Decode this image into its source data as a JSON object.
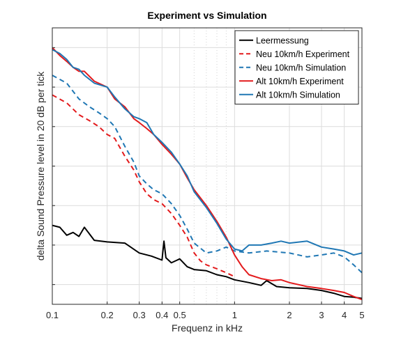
{
  "chart_data": {
    "type": "line",
    "title": "Experiment vs Simulation",
    "xlabel": "Frequenz in kHz",
    "ylabel": "delta Sound Pressure level in 20 dB per tick",
    "xscale": "log",
    "xlim": [
      0.1,
      5
    ],
    "ylim": [
      0,
      7
    ],
    "x_tick_labels": [
      {
        "value": 0.1,
        "label": "0.1"
      },
      {
        "value": 0.2,
        "label": "0.2"
      },
      {
        "value": 0.3,
        "label": "0.3"
      },
      {
        "value": 0.4,
        "label": "0.4"
      },
      {
        "value": 0.5,
        "label": "0.5"
      },
      {
        "value": 1,
        "label": "1"
      },
      {
        "value": 2,
        "label": "2"
      },
      {
        "value": 3,
        "label": "3"
      },
      {
        "value": 4,
        "label": "4"
      },
      {
        "value": 5,
        "label": "5"
      }
    ],
    "y_ticks": [
      0.5,
      1.5,
      2.5,
      3.5,
      4.5,
      5.5,
      6.5
    ],
    "grid": true,
    "legend_position": "top-right",
    "series": [
      {
        "name": "Leermessung",
        "color": "#000000",
        "dash": "solid",
        "x": [
          0.1,
          0.11,
          0.12,
          0.13,
          0.14,
          0.15,
          0.17,
          0.2,
          0.25,
          0.3,
          0.35,
          0.4,
          0.41,
          0.42,
          0.45,
          0.5,
          0.55,
          0.6,
          0.7,
          0.8,
          0.9,
          1.0,
          1.2,
          1.4,
          1.5,
          1.7,
          2.0,
          2.5,
          3.0,
          3.5,
          4.0,
          4.5,
          5.0
        ],
        "y": [
          2.0,
          1.95,
          1.75,
          1.82,
          1.72,
          1.95,
          1.62,
          1.58,
          1.55,
          1.3,
          1.22,
          1.12,
          1.6,
          1.18,
          1.05,
          1.15,
          0.95,
          0.88,
          0.85,
          0.75,
          0.7,
          0.62,
          0.55,
          0.48,
          0.6,
          0.45,
          0.42,
          0.4,
          0.35,
          0.28,
          0.2,
          0.18,
          0.15
        ]
      },
      {
        "name": "Neu 10km/h Experiment",
        "color": "#e31a1c",
        "dash": "dashed",
        "x": [
          0.1,
          0.12,
          0.14,
          0.16,
          0.18,
          0.2,
          0.22,
          0.25,
          0.28,
          0.3,
          0.33,
          0.36,
          0.4,
          0.45,
          0.5,
          0.55,
          0.6,
          0.65,
          0.7,
          0.8,
          0.9,
          1.0
        ],
        "y": [
          5.3,
          5.1,
          4.8,
          4.65,
          4.5,
          4.3,
          4.2,
          3.75,
          3.4,
          3.1,
          2.8,
          2.65,
          2.55,
          2.3,
          2.0,
          1.7,
          1.3,
          1.1,
          1.0,
          0.9,
          0.8,
          0.7
        ]
      },
      {
        "name": "Neu 10km/h Simulation",
        "color": "#1f77b4",
        "dash": "dashed",
        "x": [
          0.1,
          0.12,
          0.14,
          0.16,
          0.18,
          0.2,
          0.22,
          0.25,
          0.28,
          0.3,
          0.33,
          0.36,
          0.4,
          0.45,
          0.5,
          0.55,
          0.6,
          0.7,
          0.8,
          0.9,
          1.0,
          1.2,
          1.5,
          2.0,
          2.5,
          3.0,
          3.5,
          4.0,
          4.5,
          5.0
        ],
        "y": [
          5.8,
          5.6,
          5.2,
          5.0,
          4.85,
          4.7,
          4.5,
          4.0,
          3.6,
          3.25,
          3.05,
          2.9,
          2.8,
          2.55,
          2.25,
          1.9,
          1.55,
          1.3,
          1.35,
          1.45,
          1.35,
          1.3,
          1.35,
          1.3,
          1.2,
          1.25,
          1.3,
          1.2,
          1.0,
          0.8
        ]
      },
      {
        "name": "Alt 10km/h Experiment",
        "color": "#e31a1c",
        "dash": "solid",
        "x": [
          0.1,
          0.11,
          0.12,
          0.13,
          0.14,
          0.15,
          0.17,
          0.2,
          0.22,
          0.25,
          0.28,
          0.3,
          0.33,
          0.36,
          0.4,
          0.45,
          0.5,
          0.55,
          0.6,
          0.7,
          0.8,
          0.9,
          1.0,
          1.1,
          1.2,
          1.4,
          1.6,
          1.8,
          2.0,
          2.5,
          3.0,
          3.5,
          4.0,
          4.5,
          5.0
        ],
        "y": [
          6.5,
          6.3,
          6.15,
          6.0,
          5.9,
          5.9,
          5.65,
          5.5,
          5.2,
          5.0,
          4.7,
          4.6,
          4.45,
          4.3,
          4.05,
          3.8,
          3.55,
          3.2,
          2.9,
          2.5,
          2.1,
          1.7,
          1.25,
          0.95,
          0.75,
          0.65,
          0.6,
          0.62,
          0.55,
          0.45,
          0.4,
          0.35,
          0.3,
          0.2,
          0.12
        ]
      },
      {
        "name": "Alt 10km/h Simulation",
        "color": "#1f77b4",
        "dash": "solid",
        "x": [
          0.1,
          0.11,
          0.12,
          0.13,
          0.14,
          0.15,
          0.17,
          0.2,
          0.22,
          0.25,
          0.28,
          0.3,
          0.33,
          0.36,
          0.4,
          0.45,
          0.5,
          0.55,
          0.6,
          0.7,
          0.8,
          0.9,
          1.0,
          1.1,
          1.2,
          1.4,
          1.6,
          1.8,
          2.0,
          2.5,
          3.0,
          3.5,
          4.0,
          4.5,
          5.0
        ],
        "y": [
          6.45,
          6.35,
          6.2,
          6.0,
          5.95,
          5.8,
          5.6,
          5.5,
          5.25,
          4.95,
          4.75,
          4.7,
          4.6,
          4.3,
          4.1,
          3.85,
          3.55,
          3.25,
          2.85,
          2.45,
          2.05,
          1.65,
          1.4,
          1.35,
          1.5,
          1.5,
          1.55,
          1.6,
          1.55,
          1.6,
          1.45,
          1.4,
          1.35,
          1.25,
          1.3
        ]
      }
    ]
  }
}
